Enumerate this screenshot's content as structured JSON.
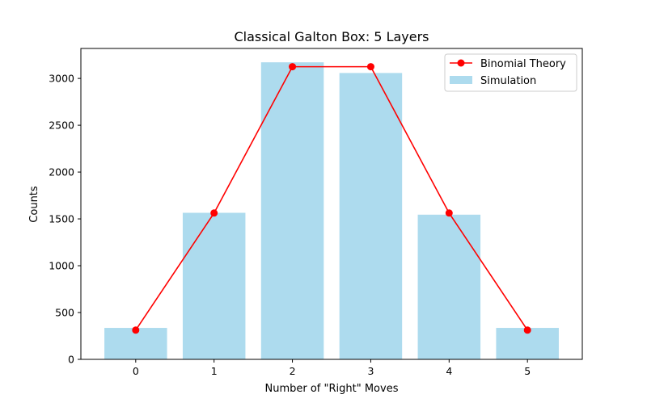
{
  "chart_data": {
    "type": "bar",
    "title": "Classical Galton Box: 5 Layers",
    "xlabel": "Number of \"Right\" Moves",
    "ylabel": "Counts",
    "categories": [
      "0",
      "1",
      "2",
      "3",
      "4",
      "5"
    ],
    "x": [
      0,
      1,
      2,
      3,
      4,
      5
    ],
    "xlim": [
      -0.7,
      5.7
    ],
    "ylim": [
      0,
      3320
    ],
    "yticks": [
      0,
      500,
      1000,
      1500,
      2000,
      2500,
      3000
    ],
    "ytick_labels": [
      "0",
      "500",
      "1000",
      "1500",
      "2000",
      "2500",
      "3000"
    ],
    "grid": false,
    "legend_position": "top-right",
    "series": [
      {
        "name": "Simulation",
        "kind": "bar",
        "color": "#ADDBEE",
        "values": [
          336,
          1565,
          3172,
          3058,
          1545,
          336
        ]
      },
      {
        "name": "Binomial Theory",
        "kind": "line",
        "marker": "circle",
        "color": "#FF0000",
        "values": [
          312.5,
          1562.5,
          3125,
          3125,
          1562.5,
          312.5
        ]
      }
    ],
    "legend": {
      "order": [
        "Binomial Theory",
        "Simulation"
      ]
    }
  }
}
